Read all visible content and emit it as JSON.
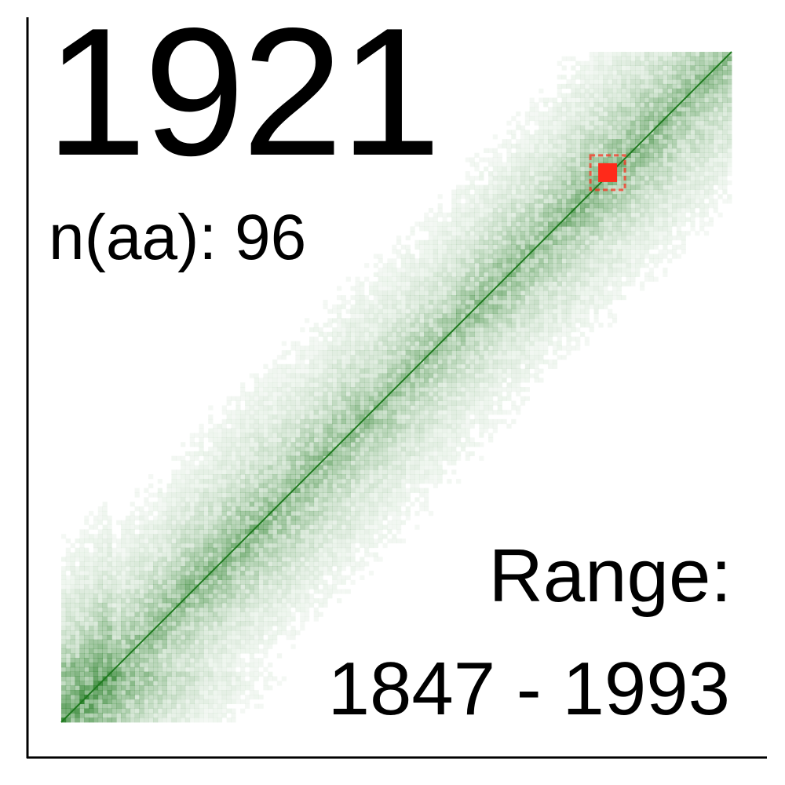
{
  "chart_data": {
    "type": "heatmap",
    "title": "1921",
    "subtitle_label": "n(aa): 96",
    "range_label": "Range:",
    "range_value": "1847 - 1993",
    "xlim": [
      1847,
      1993
    ],
    "ylim": [
      1847,
      1993
    ],
    "grid": false,
    "colors": {
      "contact": "#1f7a1f",
      "highlight": "#ff2a1a",
      "background": "#ffffff",
      "axis": "#000000"
    },
    "diagonal_density_band": [
      {
        "start": 1847,
        "end": 1858,
        "density": 0.85
      },
      {
        "start": 1858,
        "end": 1873,
        "density": 0.55
      },
      {
        "start": 1873,
        "end": 1893,
        "density": 0.6
      },
      {
        "start": 1893,
        "end": 1913,
        "density": 0.55
      },
      {
        "start": 1913,
        "end": 1933,
        "density": 0.5
      },
      {
        "start": 1933,
        "end": 1955,
        "density": 0.55
      },
      {
        "start": 1955,
        "end": 1975,
        "density": 0.6
      },
      {
        "start": 1975,
        "end": 1993,
        "density": 0.55
      }
    ],
    "highlight_cell": {
      "x": 1966,
      "y": 1966,
      "value": "1921"
    }
  }
}
